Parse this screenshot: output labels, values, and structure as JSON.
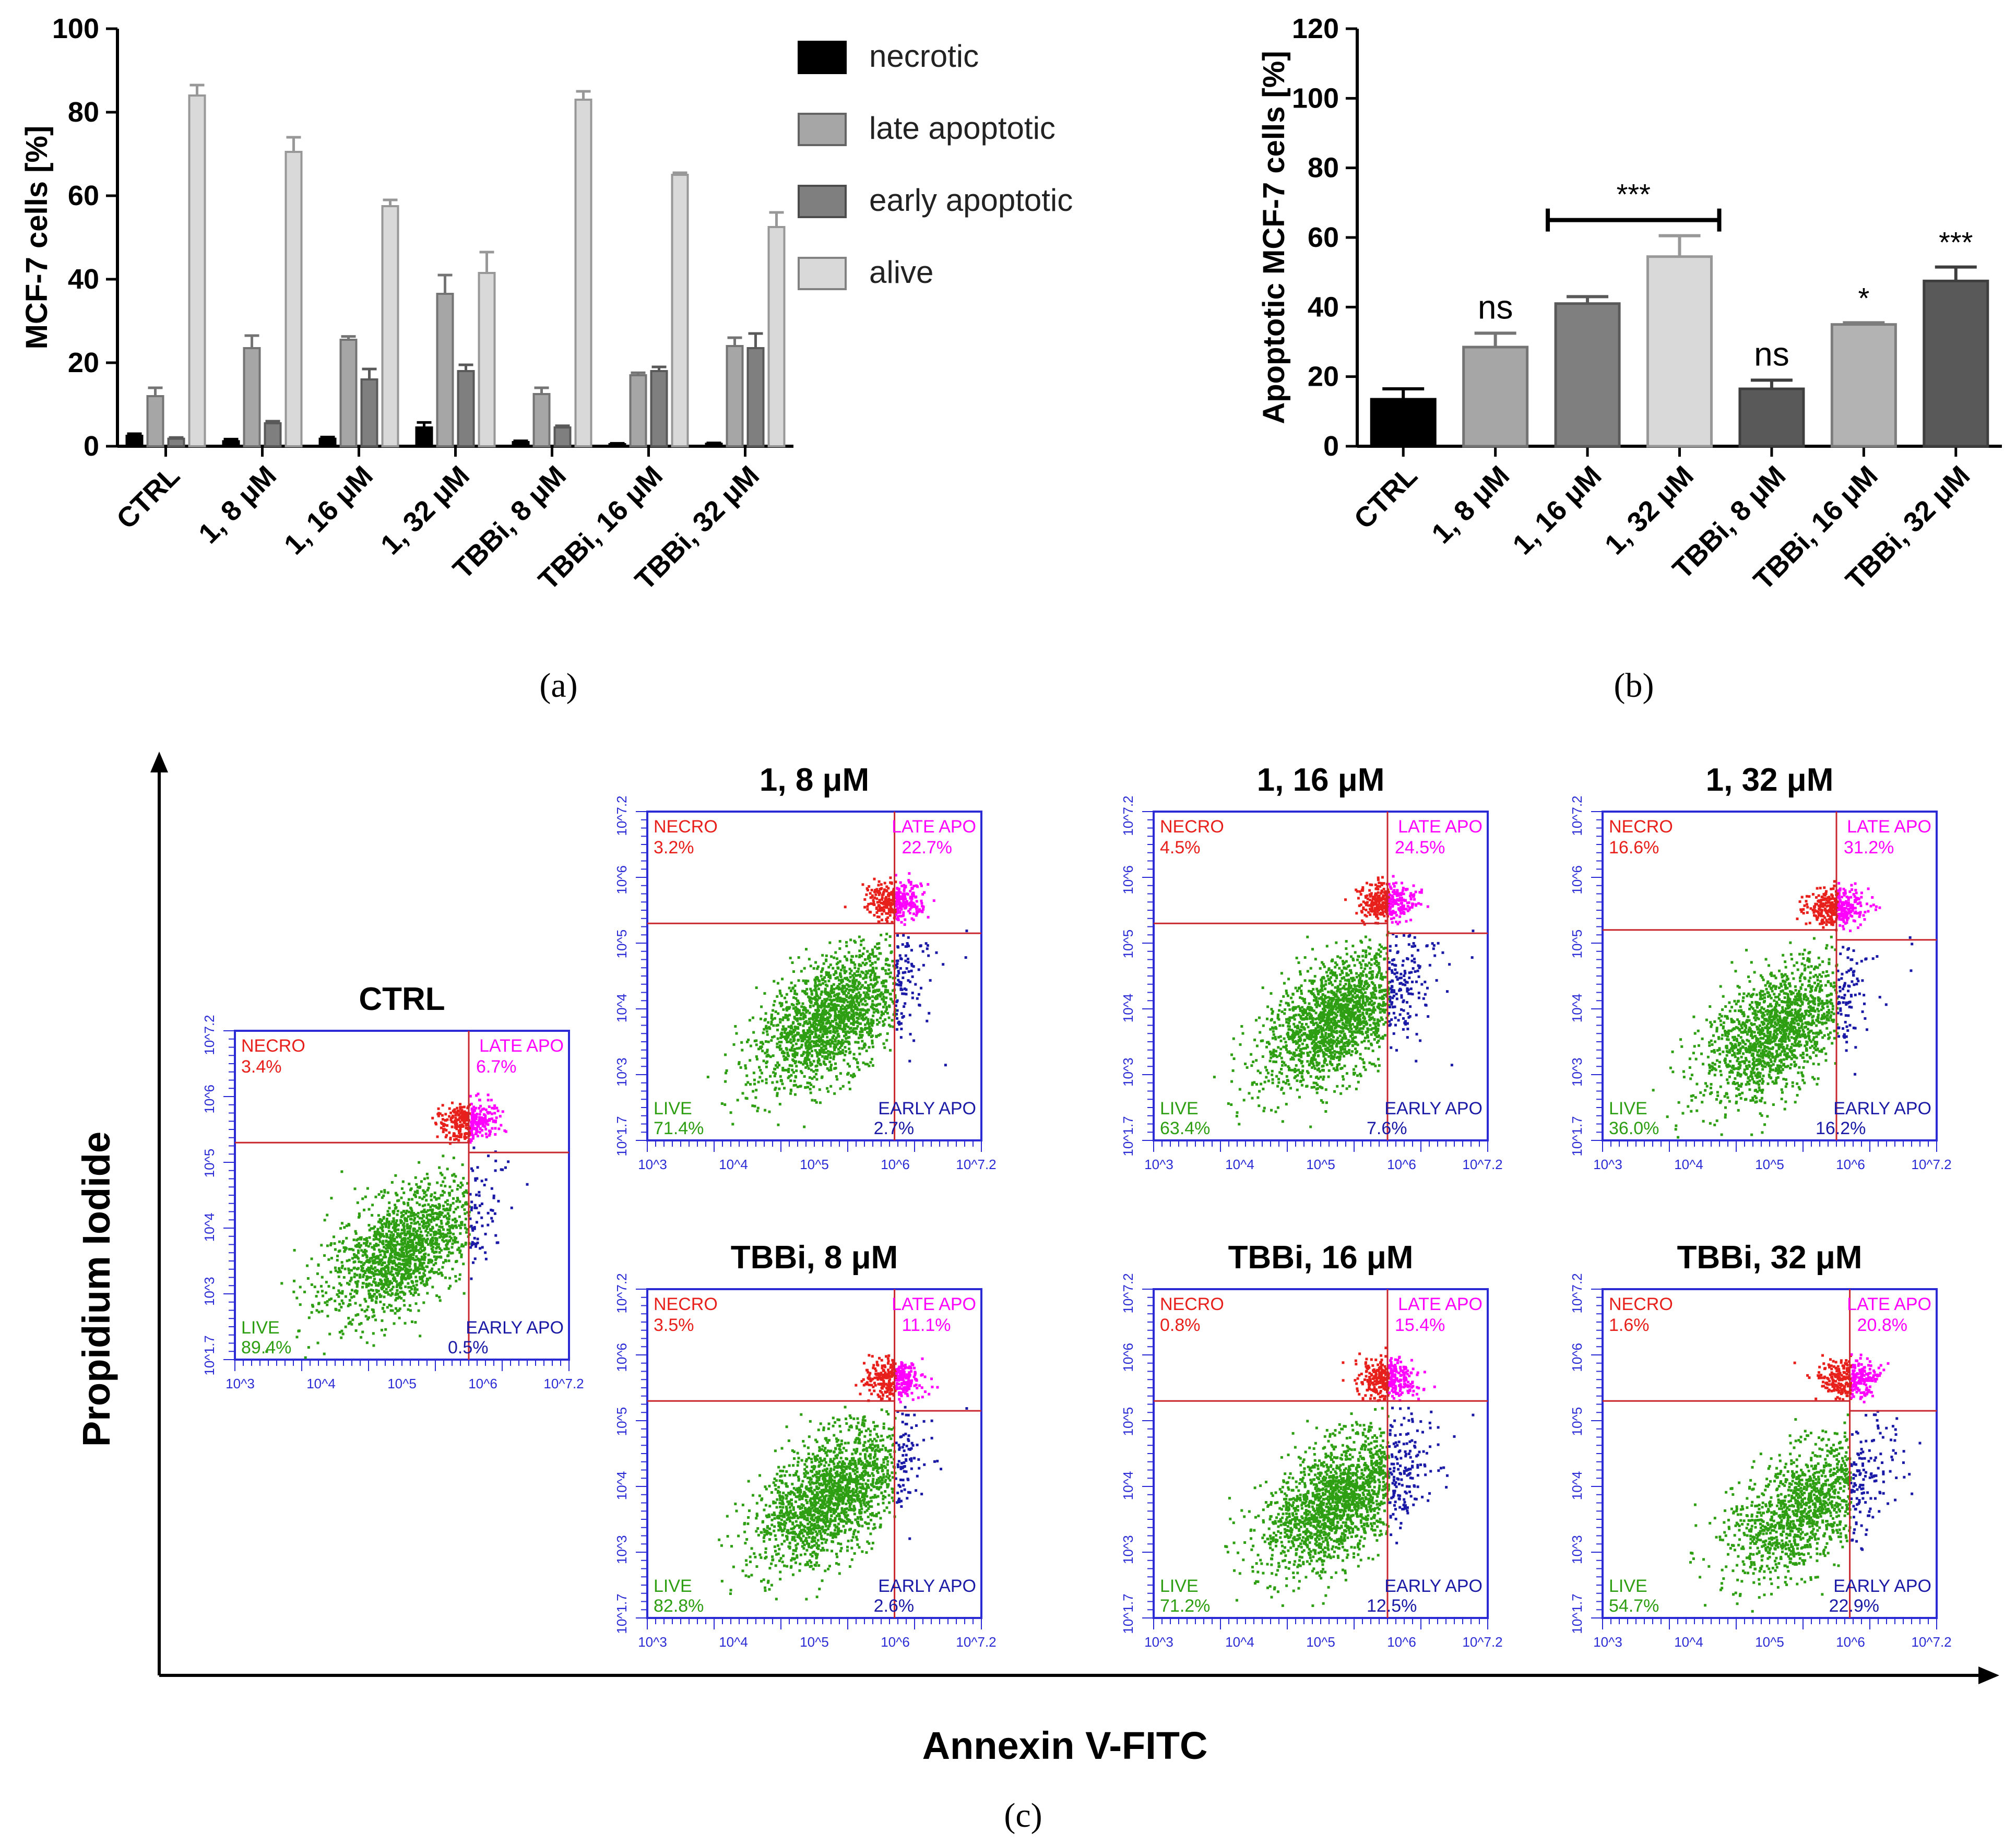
{
  "chart_data": [
    {
      "panel": "a",
      "panel_label": "(a)",
      "type": "bar",
      "ylabel": "MCF-7 cells [%]",
      "ylim": [
        0,
        100
      ],
      "yticks": [
        "0",
        "20",
        "40",
        "60",
        "80",
        "100"
      ],
      "categories": [
        "CTRL",
        "1, 8 μM",
        "1, 16 μM",
        "1, 32 μM",
        "TBBi, 8 μM",
        "TBBi, 16 μM",
        "TBBi, 32 μM"
      ],
      "legend_position": "top-right",
      "series": [
        {
          "name": "necrotic",
          "color": "#000000",
          "values": [
            2.5,
            1.2,
            1.8,
            4.5,
            1.0,
            0.5,
            0.6
          ],
          "errors": [
            0.5,
            0.5,
            0.4,
            1.2,
            0.3,
            0.2,
            0.2
          ]
        },
        {
          "name": "late apoptotic",
          "color": "#a6a6a6",
          "values": [
            12,
            23.5,
            25.5,
            36.5,
            12.5,
            17,
            24
          ],
          "errors": [
            2,
            3,
            0.8,
            4.5,
            1.5,
            0.6,
            2.0
          ]
        },
        {
          "name": "early apoptotic",
          "color": "#7f7f7f",
          "values": [
            1.8,
            5.5,
            16,
            18,
            4.5,
            18,
            23.5
          ],
          "errors": [
            0.3,
            0.5,
            2.5,
            1.5,
            0.4,
            1,
            3.5
          ]
        },
        {
          "name": "alive",
          "color": "#d9d9d9",
          "values": [
            84,
            70.5,
            57.5,
            41.5,
            83,
            65,
            52.5
          ],
          "errors": [
            2.5,
            3.5,
            1.5,
            5,
            2,
            0.5,
            3.5
          ]
        }
      ]
    },
    {
      "panel": "b",
      "panel_label": "(b)",
      "type": "bar",
      "ylabel": "Apoptotic MCF-7 cells [%]",
      "ylim": [
        0,
        120
      ],
      "yticks": [
        "0",
        "20",
        "40",
        "60",
        "80",
        "100",
        "120"
      ],
      "categories": [
        "CTRL",
        "1, 8 μM",
        "1, 16 μM",
        "1, 32 μM",
        "TBBi, 8 μM",
        "TBBi, 16 μM",
        "TBBi, 32 μM"
      ],
      "values": [
        13.5,
        28.5,
        41,
        54.5,
        16.5,
        35,
        47.5
      ],
      "errors": [
        3,
        4,
        2,
        6,
        2.5,
        0.5,
        4
      ],
      "colors": [
        "#000000",
        "#a6a6a6",
        "#7f7f7f",
        "#d9d9d9",
        "#595959",
        "#b3b3b3",
        "#595959"
      ],
      "annotations": [
        "",
        "ns",
        "",
        "",
        "ns",
        "*",
        "***"
      ],
      "bracket": {
        "from": 2,
        "to": 3,
        "label": "***"
      }
    },
    {
      "panel": "c",
      "panel_label": "(c)",
      "type": "scatter",
      "xlabel": "Annexin V-FITC",
      "ylabel": "Propidium Iodide",
      "quadrant_labels": {
        "necro": "NECRO",
        "late": "LATE APO",
        "early": "EARLY APO",
        "live": "LIVE"
      },
      "quadrant_colors": {
        "necro": "#e8201c",
        "late": "#ff00ff",
        "early": "#1a1aa6",
        "live": "#2e9e12",
        "frame": "#2b2bd6",
        "gate": "#c8282d"
      },
      "axis_ticks": [
        "10^3",
        "10^4",
        "10^5",
        "10^6",
        "10^7.2"
      ],
      "y_axis_ticks": [
        "10^1.7",
        "10^3",
        "10^4",
        "10^5",
        "10^6",
        "10^7.2"
      ],
      "plots": [
        {
          "title": "CTRL",
          "necro": "3.4%",
          "late": "6.7%",
          "live": "89.4%",
          "early": "0.5%"
        },
        {
          "title": "1, 8 μM",
          "necro": "3.2%",
          "late": "22.7%",
          "live": "71.4%",
          "early": "2.7%"
        },
        {
          "title": "1, 16 μM",
          "necro": "4.5%",
          "late": "24.5%",
          "live": "63.4%",
          "early": "7.6%"
        },
        {
          "title": "1, 32 μM",
          "necro": "16.6%",
          "late": "31.2%",
          "live": "36.0%",
          "early": "16.2%"
        },
        {
          "title": "TBBi, 8 μM",
          "necro": "3.5%",
          "late": "11.1%",
          "live": "82.8%",
          "early": "2.6%"
        },
        {
          "title": "TBBi, 16 μM",
          "necro": "0.8%",
          "late": "15.4%",
          "live": "71.2%",
          "early": "12.5%"
        },
        {
          "title": "TBBi, 32 μM",
          "necro": "1.6%",
          "late": "20.8%",
          "live": "54.7%",
          "early": "22.9%"
        }
      ]
    }
  ]
}
